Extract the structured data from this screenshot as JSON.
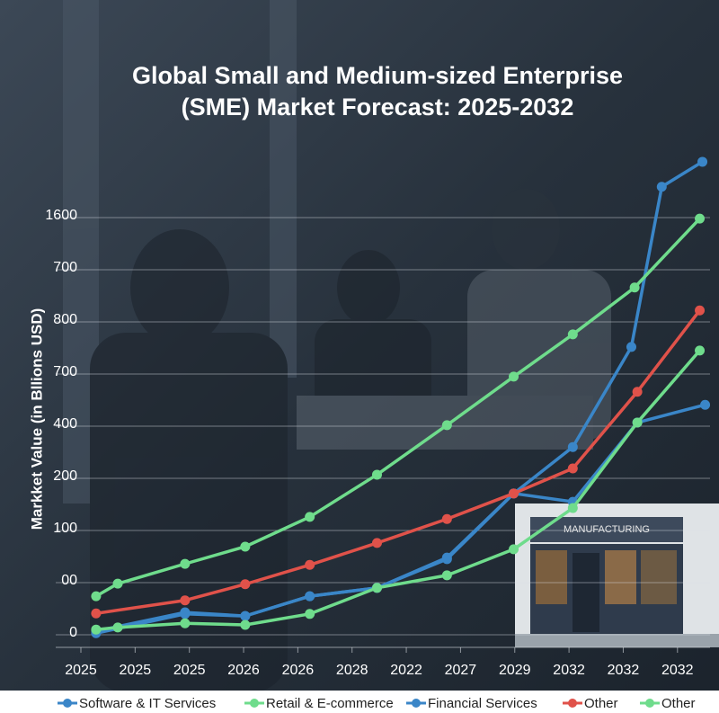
{
  "chart_data": {
    "type": "line",
    "title": [
      "Global Small and Medium-sized Enterprise",
      "(SME) Market Forecast: 2025-2032"
    ],
    "y_label": "Markket Value (in Bllions USD)",
    "xlim": [
      0,
      11.6
    ],
    "xticks": [
      {
        "value": 0,
        "label": "2025"
      },
      {
        "value": 1,
        "label": "2025"
      },
      {
        "value": 2,
        "label": "2025"
      },
      {
        "value": 3,
        "label": "2026"
      },
      {
        "value": 4,
        "label": "2026"
      },
      {
        "value": 5,
        "label": "2028"
      },
      {
        "value": 6,
        "label": "2022"
      },
      {
        "value": 7,
        "label": "2027"
      },
      {
        "value": 8,
        "label": "2029"
      },
      {
        "value": 9,
        "label": "2032"
      },
      {
        "value": 10,
        "label": "2032"
      },
      {
        "value": 11,
        "label": "2032"
      }
    ],
    "ylim": [
      0,
      920
    ],
    "yticks": [
      0,
      {
        "value": 100,
        "label": "00"
      },
      {
        "value": 200,
        "label": "100"
      },
      {
        "value": 300,
        "label": "200"
      },
      {
        "value": 400,
        "label": "400"
      },
      {
        "value": 500,
        "label": "700"
      },
      {
        "value": 600,
        "label": "800"
      },
      {
        "value": 700,
        "label": "700"
      },
      {
        "value": 800,
        "label": "1600"
      }
    ],
    "grid": true,
    "legend": "bottom",
    "series": [
      {
        "name": "Software & IT Services",
        "color": "#3a86c8",
        "x": [
          0.28,
          1.92,
          3.03,
          4.22,
          5.46,
          6.75,
          7.98,
          9.07,
          10.15,
          10.71,
          11.46
        ],
        "values": [
          7,
          43,
          36,
          74,
          90,
          148,
          271,
          360,
          552,
          859,
          907
        ]
      },
      {
        "name": "Retail & E-commerce",
        "color": "#6fdc8c",
        "x": [
          0.28,
          0.68,
          1.92,
          3.03,
          4.22,
          5.46,
          6.75,
          7.98,
          9.07,
          10.21,
          11.41
        ],
        "values": [
          74,
          98,
          136,
          169,
          226,
          307,
          402,
          495,
          576,
          666,
          798
        ]
      },
      {
        "name": "Financial Services",
        "color": "#3a86c8",
        "x": [
          0.28,
          1.92,
          3.03,
          4.22,
          5.46,
          6.75,
          7.98,
          9.07,
          10.26,
          11.51
        ],
        "values": [
          3,
          40,
          36,
          74,
          90,
          145,
          271,
          255,
          407,
          441
        ]
      },
      {
        "name": "Other",
        "color": "#e0524a",
        "x": [
          0.28,
          1.92,
          3.03,
          4.22,
          5.46,
          6.75,
          7.98,
          9.07,
          10.26,
          11.41
        ],
        "values": [
          41,
          66,
          97,
          134,
          176,
          222,
          271,
          319,
          466,
          622
        ]
      },
      {
        "name": "Other",
        "color": "#6fdc8c",
        "x": [
          0.28,
          0.68,
          1.92,
          3.03,
          4.22,
          5.46,
          6.75,
          7.98,
          9.07,
          10.26,
          11.41
        ],
        "values": [
          10,
          14,
          22,
          19,
          40,
          90,
          114,
          164,
          243,
          407,
          545
        ]
      }
    ]
  }
}
